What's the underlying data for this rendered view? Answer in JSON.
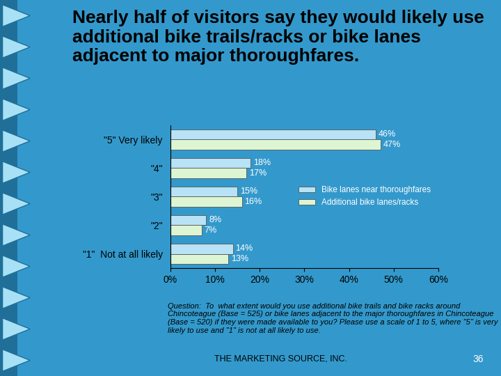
{
  "chart_data": {
    "type": "bar",
    "orientation": "horizontal",
    "title": "Nearly half of visitors say they would likely use additional bike trails/racks or bike lanes adjacent to major thoroughfares.",
    "categories": [
      "\"5\" Very likely",
      "\"4\"",
      "\"3\"",
      "\"2\"",
      "\"1\"  Not at all likely"
    ],
    "series": [
      {
        "name": "Bike lanes near thoroughfares",
        "color": "#B8E2F5",
        "values": [
          46,
          18,
          15,
          8,
          14
        ],
        "value_labels": [
          "46%",
          "18%",
          "15%",
          "8%",
          "14%"
        ]
      },
      {
        "name": "Additional bike lanes/racks",
        "color": "#DDF5D2",
        "values": [
          47,
          17,
          16,
          7,
          13
        ],
        "value_labels": [
          "47%",
          "17%",
          "16%",
          "7%",
          "13%"
        ]
      }
    ],
    "xlim": [
      0,
      60
    ],
    "xticks": [
      {
        "value": 0,
        "label": "0%"
      },
      {
        "value": 10,
        "label": "10%"
      },
      {
        "value": 20,
        "label": "20%"
      },
      {
        "value": 30,
        "label": "30%"
      },
      {
        "value": 40,
        "label": "40%"
      },
      {
        "value": 50,
        "label": "50%"
      },
      {
        "value": 60,
        "label": "60%"
      }
    ],
    "legend": "center right",
    "data_labels": true,
    "grid": false,
    "annotations": [
      "Question:  To  what extent would you use additional bike trails and bike racks around Chincoteague (Base = 525) or bike lanes adjacent to the major thoroughfares in Chincoteague (Base = 520) if they were made available to you? Please use a scale of 1 to 5, where \"5\" is very likely to use and \"1\" is not at all likely to use.",
      "THE MARKETING SOURCE, INC.",
      "36"
    ]
  }
}
